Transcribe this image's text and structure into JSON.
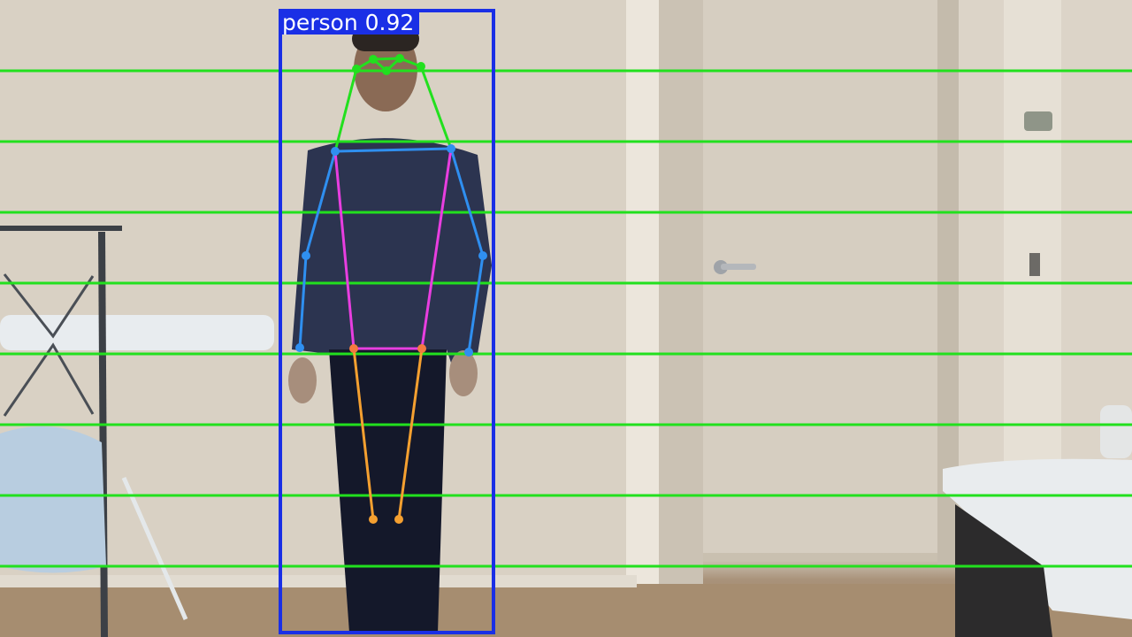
{
  "detection": {
    "label": "person 0.92",
    "box_color": "#1a2fe6"
  },
  "overlay": {
    "line_color": "#22e01e",
    "line_count": 8
  },
  "skeleton_colors": {
    "head": "#22e01e",
    "arms": "#2f8ff0",
    "torso": "#e83ee0",
    "legs": "#f5a030",
    "joint_head": "#22e01e",
    "joint_arms": "#2f8ff0",
    "joint_hips": "#f47a40",
    "joint_legs": "#f5a030"
  }
}
